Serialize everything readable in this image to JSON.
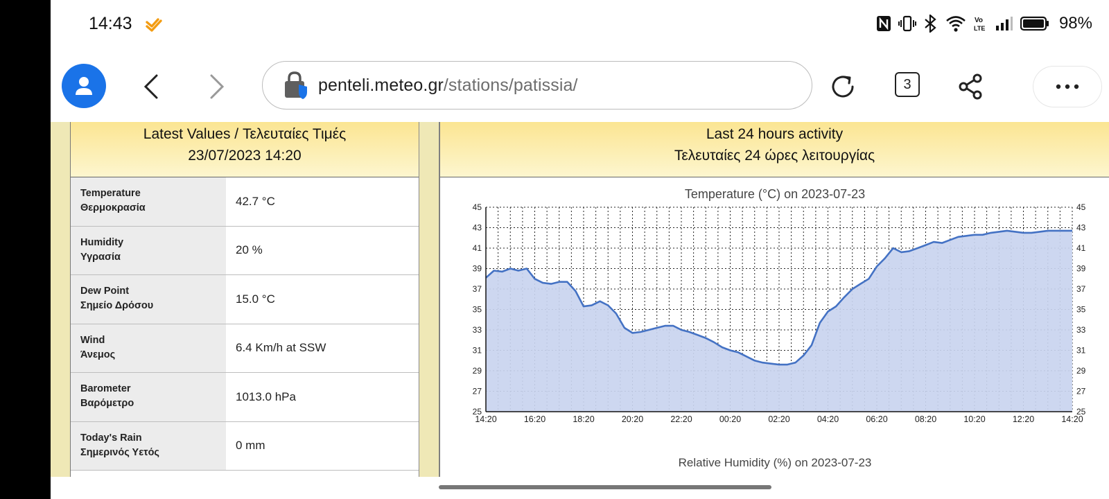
{
  "status_bar": {
    "time": "14:43",
    "battery": "98%"
  },
  "browser": {
    "url_host": "penteli.meteo.gr",
    "url_path": "/stations/patissia/",
    "tab_count": "3"
  },
  "latest": {
    "title": "Latest Values / Τελευταίες Τιμές",
    "datetime": "23/07/2023 14:20",
    "rows": [
      {
        "label_en": "Temperature",
        "label_gr": "Θερμοκρασία",
        "value": "42.7 °C"
      },
      {
        "label_en": "Humidity",
        "label_gr": "Υγρασία",
        "value": "20 %"
      },
      {
        "label_en": "Dew Point",
        "label_gr": "Σημείο Δρόσου",
        "value": "15.0 °C"
      },
      {
        "label_en": "Wind",
        "label_gr": "Άνεμος",
        "value": "6.4 Km/h at SSW"
      },
      {
        "label_en": "Barometer",
        "label_gr": "Βαρόμετρο",
        "value": "1013.0 hPa"
      },
      {
        "label_en": "Today's Rain",
        "label_gr": "Σημερινός Υετός",
        "value": "0 mm"
      }
    ]
  },
  "activity": {
    "title": "Last 24 hours activity",
    "title_gr": "Τελευταίες 24 ώρες λειτουργίας",
    "next_chart_title": "Relative Humidity (%) on 2023-07-23"
  },
  "colors": {
    "series_line": "#4472c4",
    "series_fill": "#c9d4ef",
    "header_top": "#fbe592",
    "avatar": "#1a73e8"
  },
  "chart_data": {
    "type": "area",
    "title": "Temperature (°C) on 2023-07-23",
    "xlabel": "",
    "ylabel": "",
    "ylim": [
      25,
      45
    ],
    "yticks": [
      25,
      27,
      29,
      31,
      33,
      35,
      37,
      39,
      41,
      43,
      45
    ],
    "xtick_labels": [
      "14:20",
      "16:20",
      "18:20",
      "20:20",
      "22:20",
      "00:20",
      "02:20",
      "04:20",
      "06:20",
      "08:20",
      "10:20",
      "12:20",
      "14:20"
    ],
    "grid": true,
    "x_hours": [
      0,
      0.33,
      0.67,
      1.0,
      1.33,
      1.67,
      2.0,
      2.33,
      2.67,
      3.0,
      3.33,
      3.67,
      4.0,
      4.33,
      4.67,
      5.0,
      5.33,
      5.67,
      6.0,
      6.33,
      6.67,
      7.0,
      7.33,
      7.67,
      8.0,
      8.33,
      8.67,
      9.0,
      9.33,
      9.67,
      10.0,
      10.33,
      10.67,
      11.0,
      11.33,
      11.67,
      12.0,
      12.33,
      12.67,
      13.0,
      13.33,
      13.67,
      14.0,
      14.33,
      14.67,
      15.0,
      15.33,
      15.67,
      16.0,
      16.33,
      16.67,
      17.0,
      17.33,
      17.67,
      18.0,
      18.33,
      18.67,
      19.0,
      19.33,
      19.67,
      20.0,
      20.33,
      20.67,
      21.0,
      21.33,
      21.67,
      22.0,
      22.33,
      22.67,
      23.0,
      23.33,
      23.67,
      24.0
    ],
    "series": [
      {
        "values": [
          38.1,
          38.8,
          38.7,
          39.0,
          38.8,
          39.0,
          38.0,
          37.6,
          37.5,
          37.7,
          37.7,
          36.8,
          35.3,
          35.4,
          35.8,
          35.4,
          34.6,
          33.2,
          32.7,
          32.8,
          33.0,
          33.2,
          33.4,
          33.4,
          33.0,
          32.8,
          32.5,
          32.2,
          31.8,
          31.3,
          31.0,
          30.8,
          30.4,
          30.0,
          29.8,
          29.7,
          29.6,
          29.6,
          29.8,
          30.5,
          31.5,
          33.7,
          34.8,
          35.3,
          36.2,
          37.0,
          37.5,
          38.0,
          39.2,
          40.0,
          41.0,
          40.6,
          40.7,
          41.0,
          41.3,
          41.6,
          41.5,
          41.8,
          42.1,
          42.2,
          42.3,
          42.3,
          42.5,
          42.6,
          42.7,
          42.6,
          42.5,
          42.5,
          42.6,
          42.7,
          42.7,
          42.7,
          42.7
        ]
      }
    ]
  }
}
